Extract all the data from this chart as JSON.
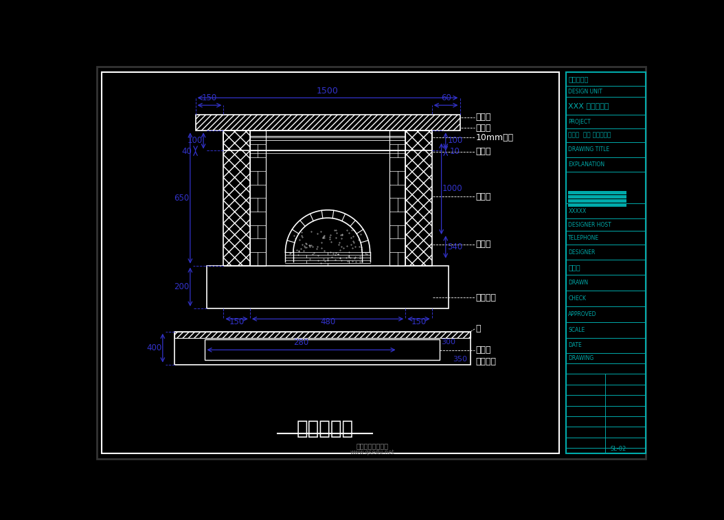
{
  "bg_color": "#000000",
  "draw_color": "#ffffff",
  "dim_color": "#3333cc",
  "cyan_color": "#00aaaa",
  "title": "壁炉施工图",
  "title_fontsize": 20,
  "fig_width": 10.54,
  "fig_height": 7.57,
  "ann_labels_top": [
    "装饰板",
    "装饰板",
    "10mm拉缝",
    "装饰板",
    "耐火砖",
    "耐火砖",
    "白色石块"
  ],
  "ann_labels_bot": [
    "墙",
    "装饰板",
    "白色石块"
  ],
  "dims_top": [
    "1500",
    "150",
    "60"
  ],
  "dims_left_elev": [
    "100",
    "40",
    "650",
    "200"
  ],
  "dims_right_elev": [
    "100",
    "10",
    "1000",
    "540"
  ],
  "dims_bottom_elev": [
    "150",
    "480",
    "150"
  ],
  "dims_sec": [
    "400",
    "280",
    "300",
    "350"
  ],
  "rp_labels": [
    "典引装饰图",
    "DESIGN UNIT",
    "XXX 精品大户室",
    "PROJECT",
    "置文革  设计 家居装饰图",
    "DRAWING TITLE",
    "EXPLANATION",
    "DESIGNER HOST",
    "TELEPHONE",
    "DESIGNER",
    "起源道",
    "DRAWN",
    "CHECK",
    "APPROVED",
    "SCALE",
    "DATE",
    "DRAWING",
    "SL-02"
  ]
}
